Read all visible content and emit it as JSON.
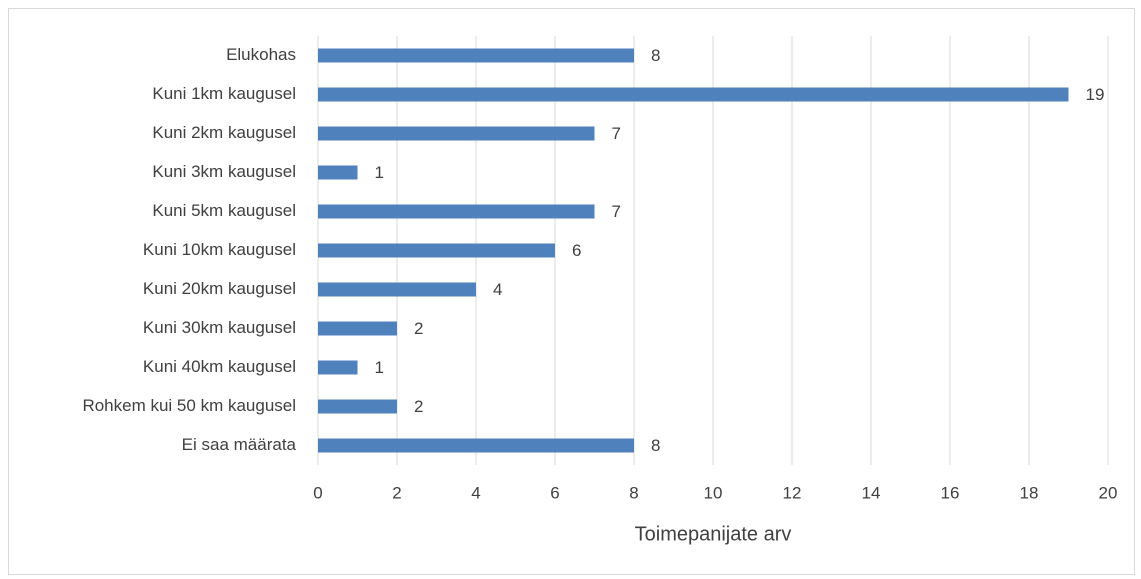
{
  "chart_data": {
    "type": "bar",
    "orientation": "horizontal",
    "categories": [
      "Elukohas",
      "Kuni 1km kaugusel",
      "Kuni 2km kaugusel",
      "Kuni 3km kaugusel",
      "Kuni 5km kaugusel",
      "Kuni 10km kaugusel",
      "Kuni 20km kaugusel",
      "Kuni 30km kaugusel",
      "Kuni 40km kaugusel",
      "Rohkem kui 50 km kaugusel",
      "Ei saa määrata"
    ],
    "values": [
      8,
      19,
      7,
      1,
      7,
      6,
      4,
      2,
      1,
      2,
      8
    ],
    "color": "#4f81bd",
    "x_label": "Toimepanijate arv",
    "xlim": [
      0,
      20
    ],
    "xticks": [
      0,
      2,
      4,
      6,
      8,
      10,
      12,
      14,
      16,
      18,
      20
    ],
    "grid": true
  }
}
